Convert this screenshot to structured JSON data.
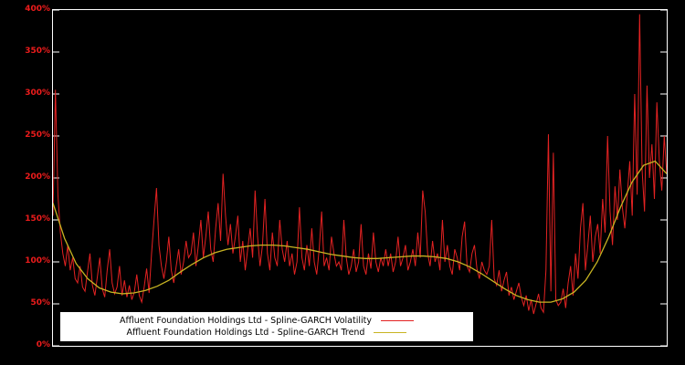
{
  "figure": {
    "background": "#000000",
    "plot_border_color": "#ffffff",
    "axis_label_color": "#ee1c1c"
  },
  "legend": {
    "background": "#ffffff",
    "entries": [
      {
        "label": "Affluent Foundation Holdings Ltd - Spline-GARCH Volatility",
        "color": "#e32222"
      },
      {
        "label": "Affluent Foundation Holdings Ltd - Spline-GARCH Trend",
        "color": "#c8b422"
      }
    ]
  },
  "chart_data": {
    "type": "line",
    "title": "",
    "xlabel": "",
    "ylabel": "",
    "ylim": [
      0,
      400
    ],
    "grid": false,
    "legend_position": "bottom-left",
    "x_tick_labels_visible": false,
    "y_ticks": [
      {
        "value": 0,
        "label": "0%"
      },
      {
        "value": 50,
        "label": "50%"
      },
      {
        "value": 100,
        "label": "100%"
      },
      {
        "value": 150,
        "label": "150%"
      },
      {
        "value": 200,
        "label": "200%"
      },
      {
        "value": 250,
        "label": "250%"
      },
      {
        "value": 300,
        "label": "300%"
      },
      {
        "value": 350,
        "label": "350%"
      },
      {
        "value": 400,
        "label": "400%"
      }
    ],
    "series": [
      {
        "name": "Affluent Foundation Holdings Ltd - Spline-GARCH Volatility",
        "key": "volatility",
        "color": "#e32222",
        "width": 1,
        "values": [
          155,
          305,
          180,
          135,
          110,
          95,
          120,
          90,
          105,
          80,
          75,
          95,
          70,
          65,
          88,
          110,
          72,
          60,
          82,
          105,
          68,
          58,
          90,
          115,
          75,
          62,
          70,
          95,
          60,
          78,
          58,
          72,
          55,
          64,
          85,
          60,
          52,
          70,
          92,
          63,
          110,
          150,
          188,
          120,
          95,
          80,
          100,
          130,
          90,
          75,
          95,
          115,
          85,
          100,
          125,
          105,
          110,
          135,
          95,
          120,
          150,
          105,
          130,
          160,
          115,
          100,
          140,
          170,
          125,
          205,
          155,
          120,
          145,
          110,
          130,
          155,
          100,
          125,
          90,
          115,
          140,
          105,
          185,
          130,
          95,
          120,
          175,
          110,
          90,
          135,
          105,
          95,
          150,
          115,
          100,
          125,
          95,
          110,
          85,
          100,
          165,
          105,
          90,
          120,
          95,
          140,
          100,
          85,
          115,
          160,
          95,
          105,
          90,
          130,
          110,
          95,
          100,
          90,
          150,
          105,
          85,
          95,
          115,
          88,
          100,
          145,
          95,
          85,
          110,
          92,
          135,
          100,
          88,
          105,
          95,
          115,
          95,
          110,
          88,
          100,
          130,
          95,
          105,
          120,
          90,
          100,
          115,
          95,
          135,
          105,
          185,
          160,
          110,
          95,
          125,
          100,
          110,
          90,
          150,
          100,
          120,
          95,
          85,
          115,
          105,
          90,
          130,
          148,
          95,
          88,
          110,
          120,
          92,
          80,
          100,
          90,
          85,
          95,
          150,
          80,
          72,
          90,
          65,
          78,
          88,
          60,
          70,
          55,
          65,
          75,
          58,
          48,
          60,
          42,
          55,
          38,
          50,
          62,
          45,
          40,
          90,
          252,
          65,
          230,
          55,
          48,
          52,
          68,
          45,
          75,
          95,
          60,
          110,
          80,
          140,
          170,
          90,
          120,
          155,
          100,
          130,
          145,
          110,
          175,
          135,
          250,
          160,
          120,
          190,
          150,
          210,
          165,
          140,
          180,
          220,
          155,
          300,
          180,
          395,
          210,
          160,
          310,
          200,
          240,
          175,
          290,
          220,
          185,
          250,
          205
        ]
      },
      {
        "name": "Affluent Foundation Holdings Ltd - Spline-GARCH Trend",
        "key": "trend",
        "color": "#c8b422",
        "width": 1.3,
        "values": [
          170,
          128,
          98,
          80,
          69,
          64,
          62,
          63,
          66,
          71,
          78,
          88,
          97,
          105,
          111,
          115,
          117,
          119,
          120,
          120,
          119,
          117,
          115,
          112,
          109,
          107,
          105,
          104,
          104,
          105,
          106,
          107,
          107,
          106,
          104,
          100,
          94,
          86,
          77,
          68,
          60,
          55,
          52,
          52,
          56,
          64,
          78,
          100,
          130,
          165,
          195,
          215,
          220,
          205
        ]
      }
    ]
  }
}
